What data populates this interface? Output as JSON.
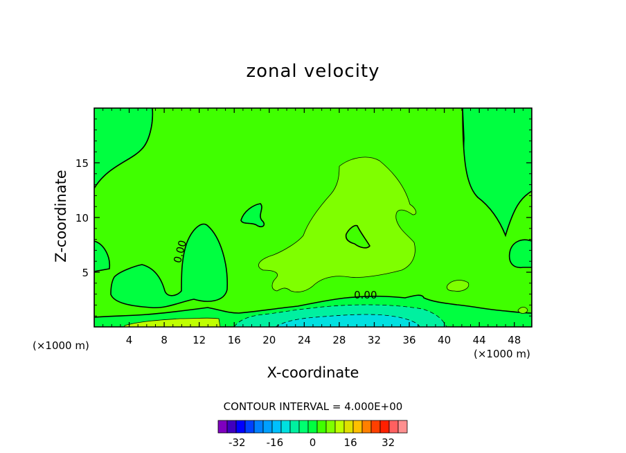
{
  "chart_data": {
    "type": "heatmap",
    "title": "zonal velocity",
    "xlabel": "X-coordinate",
    "ylabel": "Z-coordinate",
    "x_unit_left": "(×1000 m)",
    "x_unit_right": "(×1000 m)",
    "xlim": [
      0,
      50
    ],
    "ylim": [
      0,
      20
    ],
    "x_ticks": [
      "4",
      "8",
      "12",
      "16",
      "20",
      "24",
      "28",
      "32",
      "36",
      "40",
      "44",
      "48"
    ],
    "x_tick_values": [
      4,
      8,
      12,
      16,
      20,
      24,
      28,
      32,
      36,
      40,
      44,
      48
    ],
    "y_ticks": [
      "5",
      "10",
      "15"
    ],
    "y_tick_values": [
      5,
      10,
      15
    ],
    "contour_labels": [
      {
        "text": "0.00",
        "x": 10.2,
        "z": 6.8,
        "angle": -75
      },
      {
        "text": "0.00",
        "x": 31,
        "z": 2.6,
        "angle": 0
      }
    ],
    "contour_interval": "CONTOUR INTERVAL = 4.000E+00",
    "colorbar": {
      "levels": [
        -40,
        -36,
        -32,
        -28,
        -24,
        -20,
        -16,
        -12,
        -8,
        -4,
        0,
        4,
        8,
        12,
        16,
        20,
        24,
        28,
        32,
        36,
        40
      ],
      "tick_labels": [
        "-32",
        "-16",
        "0",
        "16",
        "32"
      ],
      "tick_values": [
        -32,
        -16,
        0,
        16,
        32
      ],
      "colors": [
        "#7f00bf",
        "#3f00bf",
        "#0000ff",
        "#0040ff",
        "#0080ff",
        "#00a0ff",
        "#00c0ff",
        "#00e0e0",
        "#00f0a0",
        "#00ff70",
        "#00ff40",
        "#40ff00",
        "#7fff00",
        "#bfff00",
        "#e0e000",
        "#ffc000",
        "#ff8000",
        "#ff4000",
        "#ff2000",
        "#ff6060",
        "#ff9090"
      ]
    },
    "background_color": "#00ff40"
  }
}
